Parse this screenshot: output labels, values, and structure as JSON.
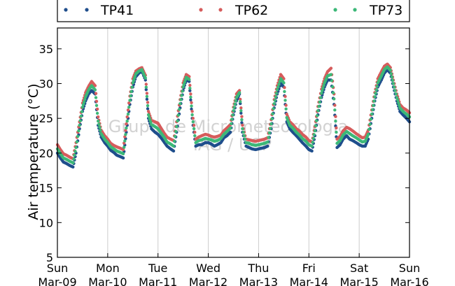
{
  "chart_data": {
    "type": "scatter",
    "ylabel": "Air temperature (°C)",
    "ylim": [
      5,
      38
    ],
    "yticks": [
      5,
      10,
      15,
      20,
      25,
      30,
      35
    ],
    "xlim": [
      "2015-03-09 00:00",
      "2015-03-16 00:00"
    ],
    "xticks": [
      {
        "day": "Sun",
        "date": "Mar-09"
      },
      {
        "day": "Mon",
        "date": "Mar-10"
      },
      {
        "day": "Tue",
        "date": "Mar-11"
      },
      {
        "day": "Wed",
        "date": "Mar-12"
      },
      {
        "day": "Thu",
        "date": "Mar-13"
      },
      {
        "day": "Fri",
        "date": "Mar-14"
      },
      {
        "day": "Sat",
        "date": "Mar-15"
      },
      {
        "day": "Sun",
        "date": "Mar-16"
      }
    ],
    "grid": "vertical",
    "legend_position": "top",
    "watermark": [
      "Grupo de Micrometeorologia",
      "IAG / USP"
    ],
    "series": [
      {
        "name": "TP41",
        "color": "#1f4e8c",
        "x": [
          0.0,
          0.06,
          0.12,
          0.18,
          0.25,
          0.31,
          0.37,
          0.44,
          0.5,
          0.56,
          0.62,
          0.68,
          0.75,
          0.81,
          0.87,
          0.94,
          1.0,
          1.06,
          1.12,
          1.18,
          1.25,
          1.31,
          1.37,
          1.44,
          1.5,
          1.56,
          1.62,
          1.68,
          1.75,
          1.81,
          1.87,
          1.94,
          2.0,
          2.06,
          2.12,
          2.18,
          2.25,
          2.31,
          2.37,
          2.44,
          2.5,
          2.56,
          2.62,
          2.68,
          2.75,
          2.81,
          2.87,
          2.94,
          3.0,
          3.06,
          3.12,
          3.18,
          3.25,
          3.31,
          3.37,
          3.44,
          3.5,
          3.56,
          3.62,
          3.68,
          3.75,
          3.81,
          3.87,
          3.94,
          4.0,
          4.06,
          4.12,
          4.18,
          4.25,
          4.31,
          4.37,
          4.44,
          4.5,
          4.56,
          4.62,
          4.68,
          4.75,
          4.81,
          4.87,
          4.94,
          5.0,
          5.06,
          5.12,
          5.18,
          5.25,
          5.31,
          5.37,
          5.44,
          5.5,
          5.56,
          5.62,
          5.68,
          5.75,
          5.81,
          5.87,
          5.94,
          6.0,
          6.06,
          6.12,
          6.18,
          6.25,
          6.31,
          6.37,
          6.44,
          6.5,
          6.56,
          6.62,
          6.68,
          6.75,
          6.81,
          6.87,
          6.94,
          7.0
        ],
        "y": [
          20.0,
          19.3,
          18.7,
          18.5,
          18.2,
          18.0,
          20.0,
          23.5,
          26.0,
          27.5,
          28.5,
          29.0,
          28.5,
          24.0,
          22.3,
          21.5,
          21.0,
          20.4,
          20.1,
          19.7,
          19.5,
          19.3,
          23.0,
          27.0,
          29.5,
          31.0,
          31.5,
          31.8,
          30.5,
          25.0,
          23.5,
          23.0,
          22.7,
          22.2,
          21.6,
          21.0,
          20.6,
          20.3,
          23.0,
          26.5,
          29.0,
          30.5,
          30.3,
          25.0,
          21.0,
          21.2,
          21.2,
          21.5,
          21.5,
          21.3,
          21.0,
          21.2,
          21.5,
          22.2,
          22.5,
          23.0,
          25.5,
          27.5,
          28.5,
          23.0,
          21.0,
          20.8,
          20.6,
          20.5,
          20.6,
          20.7,
          20.8,
          21.0,
          23.5,
          26.5,
          28.5,
          30.0,
          29.5,
          24.5,
          23.5,
          23.0,
          22.5,
          22.0,
          21.5,
          21.0,
          20.5,
          20.3,
          22.5,
          25.5,
          28.0,
          29.5,
          30.5,
          30.5,
          27.0,
          20.8,
          21.2,
          22.0,
          22.5,
          22.0,
          21.8,
          21.5,
          21.2,
          21.0,
          21.0,
          22.0,
          25.0,
          27.5,
          29.5,
          30.5,
          31.5,
          32.0,
          31.5,
          29.5,
          27.5,
          26.0,
          25.5,
          25.0,
          24.5
        ]
      },
      {
        "name": "TP62",
        "color": "#d65c5c",
        "x": [
          0.0,
          0.06,
          0.12,
          0.18,
          0.25,
          0.31,
          0.37,
          0.44,
          0.5,
          0.56,
          0.62,
          0.68,
          0.75,
          0.81,
          0.87,
          0.94,
          1.0,
          1.06,
          1.12,
          1.18,
          1.25,
          1.31,
          1.37,
          1.44,
          1.5,
          1.56,
          1.62,
          1.68,
          1.75,
          1.81,
          1.87,
          1.94,
          2.0,
          2.06,
          2.12,
          2.18,
          2.25,
          2.31,
          2.37,
          2.44,
          2.5,
          2.56,
          2.62,
          2.68,
          2.75,
          2.81,
          2.87,
          2.94,
          3.0,
          3.06,
          3.12,
          3.18,
          3.25,
          3.31,
          3.37,
          3.44,
          3.5,
          3.56,
          3.62,
          3.68,
          3.75,
          3.81,
          3.87,
          3.94,
          4.0,
          4.06,
          4.12,
          4.18,
          4.25,
          4.31,
          4.37,
          4.44,
          4.5,
          4.56,
          4.62,
          4.68,
          4.75,
          4.81,
          4.87,
          4.94,
          5.0,
          5.06,
          5.12,
          5.18,
          5.25,
          5.31,
          5.37,
          5.44,
          5.5,
          5.56,
          5.62,
          5.68,
          5.75,
          5.81,
          5.87,
          5.94,
          6.0,
          6.06,
          6.12,
          6.18,
          6.25,
          6.31,
          6.37,
          6.44,
          6.5,
          6.56,
          6.62,
          6.68,
          6.75,
          6.81,
          6.87,
          6.94,
          7.0
        ],
        "y": [
          21.2,
          20.5,
          19.9,
          19.7,
          19.4,
          19.2,
          21.5,
          24.5,
          27.2,
          28.7,
          29.6,
          30.3,
          29.7,
          25.2,
          23.3,
          22.5,
          22.0,
          21.4,
          21.1,
          20.9,
          20.7,
          20.5,
          24.2,
          28.2,
          30.7,
          31.8,
          32.1,
          32.3,
          31.2,
          26.0,
          24.7,
          24.5,
          24.3,
          23.6,
          22.9,
          22.3,
          22.0,
          21.8,
          24.5,
          27.7,
          30.1,
          31.3,
          31.0,
          26.0,
          22.0,
          22.3,
          22.5,
          22.7,
          22.6,
          22.4,
          22.3,
          22.4,
          22.6,
          23.2,
          23.6,
          24.1,
          26.6,
          28.5,
          29.0,
          24.0,
          22.0,
          21.9,
          21.8,
          21.7,
          21.8,
          21.9,
          22.0,
          22.2,
          24.8,
          27.7,
          29.7,
          31.3,
          30.7,
          25.6,
          24.5,
          24.1,
          23.5,
          23.2,
          22.7,
          22.3,
          21.8,
          21.6,
          23.8,
          26.7,
          29.2,
          30.7,
          31.7,
          32.2,
          28.5,
          22.0,
          22.4,
          23.2,
          23.7,
          23.5,
          23.2,
          22.8,
          22.5,
          22.2,
          22.3,
          23.3,
          26.2,
          28.7,
          30.7,
          31.7,
          32.5,
          32.8,
          32.3,
          30.5,
          28.5,
          27.0,
          26.5,
          26.2,
          25.8
        ]
      },
      {
        "name": "TP73",
        "color": "#3cb878",
        "x": [
          0.0,
          0.06,
          0.12,
          0.18,
          0.25,
          0.31,
          0.37,
          0.44,
          0.5,
          0.56,
          0.62,
          0.68,
          0.75,
          0.81,
          0.87,
          0.94,
          1.0,
          1.06,
          1.12,
          1.18,
          1.25,
          1.31,
          1.37,
          1.44,
          1.5,
          1.56,
          1.62,
          1.68,
          1.75,
          1.81,
          1.87,
          1.94,
          2.0,
          2.06,
          2.12,
          2.18,
          2.25,
          2.31,
          2.37,
          2.44,
          2.5,
          2.56,
          2.62,
          2.68,
          2.75,
          2.81,
          2.87,
          2.94,
          3.0,
          3.06,
          3.12,
          3.18,
          3.25,
          3.31,
          3.37,
          3.44,
          3.5,
          3.56,
          3.62,
          3.68,
          3.75,
          3.81,
          3.87,
          3.94,
          4.0,
          4.06,
          4.12,
          4.18,
          4.25,
          4.31,
          4.37,
          4.44,
          4.5,
          4.56,
          4.62,
          4.68,
          4.75,
          4.81,
          4.87,
          4.94,
          5.0,
          5.06,
          5.12,
          5.18,
          5.25,
          5.31,
          5.37,
          5.44,
          5.5,
          5.56,
          5.62,
          5.68,
          5.75,
          5.81,
          5.87,
          5.94,
          6.0,
          6.06,
          6.12,
          6.18,
          6.25,
          6.31,
          6.37,
          6.44,
          6.5,
          6.56,
          6.62,
          6.68,
          6.75,
          6.81,
          6.87,
          6.94,
          7.0
        ],
        "y": [
          20.6,
          19.9,
          19.3,
          19.1,
          18.8,
          18.6,
          20.8,
          24.0,
          26.6,
          28.1,
          29.1,
          29.7,
          29.1,
          24.6,
          22.8,
          22.0,
          21.5,
          20.9,
          20.6,
          20.3,
          20.1,
          19.9,
          23.6,
          27.6,
          30.1,
          31.4,
          31.8,
          32.0,
          30.8,
          25.5,
          24.1,
          23.8,
          23.5,
          22.9,
          22.3,
          21.6,
          21.3,
          21.0,
          23.8,
          27.1,
          29.5,
          30.9,
          30.6,
          25.5,
          21.5,
          21.8,
          21.9,
          22.1,
          22.0,
          21.9,
          21.7,
          21.8,
          22.1,
          22.7,
          23.1,
          23.6,
          26.1,
          28.0,
          28.7,
          23.5,
          21.5,
          21.4,
          21.2,
          21.1,
          21.2,
          21.3,
          21.4,
          21.6,
          24.2,
          27.1,
          29.1,
          30.7,
          30.1,
          25.1,
          24.0,
          23.6,
          23.0,
          22.6,
          22.1,
          21.7,
          21.2,
          21.0,
          23.2,
          26.1,
          28.6,
          30.1,
          31.1,
          31.3,
          27.8,
          21.4,
          21.8,
          22.6,
          23.1,
          22.8,
          22.5,
          22.2,
          21.9,
          21.6,
          21.7,
          22.7,
          25.6,
          28.1,
          30.1,
          31.1,
          32.0,
          32.4,
          31.9,
          30.0,
          28.0,
          26.5,
          26.0,
          25.6,
          25.2
        ]
      }
    ]
  }
}
